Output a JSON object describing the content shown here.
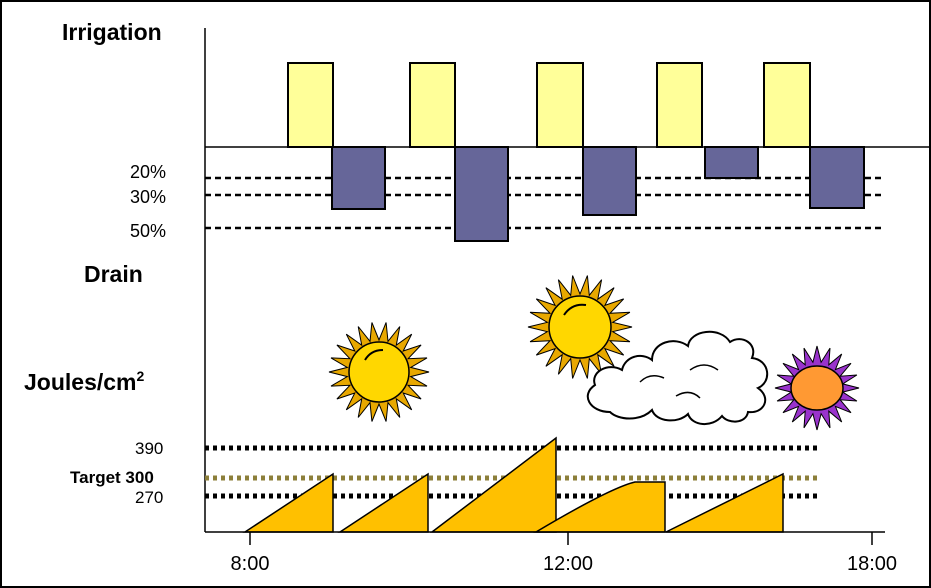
{
  "labels": {
    "irrigation": "Irrigation",
    "drain": "Drain",
    "joules_prefix": "Joules/cm",
    "joules_sup": "2",
    "drain_levels": [
      "20%",
      "30%",
      "50%"
    ],
    "energy_levels": [
      "390",
      "Target 300",
      "270"
    ],
    "time_ticks": [
      "8:00",
      "12:00",
      "18:00"
    ]
  },
  "colors": {
    "irrigation_bar": "#ffff99",
    "drain_bar": "#666699",
    "energy_fill": "#ffc000",
    "target_line": "#8c7f3a",
    "sun_color": "#ffd700",
    "sun_ray_color": "#e8a800",
    "evening_sun_color": "#ff9933",
    "evening_sun_ray_color": "#9933cc"
  },
  "icons": [
    "sun-icon",
    "sun-icon",
    "cloud-icon",
    "evening-sun-icon"
  ],
  "irrigation_pulses": 5,
  "drain_events": [
    {
      "level_percent": 30
    },
    {
      "level_percent": 50
    },
    {
      "level_percent": 35
    },
    {
      "level_percent": 20
    },
    {
      "level_percent": 30
    }
  ]
}
